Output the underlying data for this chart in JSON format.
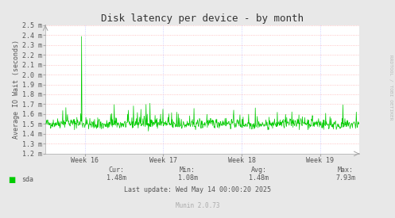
{
  "title": "Disk latency per device - by month",
  "ylabel": "Average IO Wait (seconds)",
  "bg_color": "#e8e8e8",
  "plot_bg_color": "#ffffff",
  "line_color": "#00cc00",
  "grid_color": "#ffaaaa",
  "grid_color_v": "#aaaaff",
  "ylim_min": 0.0012,
  "ylim_max": 0.0025,
  "yticks": [
    0.0012,
    0.0013,
    0.0014,
    0.0015,
    0.0016,
    0.0017,
    0.0018,
    0.0019,
    0.002,
    0.0021,
    0.0022,
    0.0023,
    0.0024,
    0.0025
  ],
  "ytick_labels": [
    "1.2 m",
    "1.3 m",
    "1.4 m",
    "1.5 m",
    "1.6 m",
    "1.7 m",
    "1.8 m",
    "1.9 m",
    "2.0 m",
    "2.1 m",
    "2.2 m",
    "2.3 m",
    "2.4 m",
    "2.5 m"
  ],
  "xtick_labels": [
    "Week 16",
    "Week 17",
    "Week 18",
    "Week 19"
  ],
  "legend_label": "sda",
  "legend_color": "#00cc00",
  "cur_val": "1.48m",
  "min_val": "1.08m",
  "avg_val": "1.48m",
  "max_val": "7.93m",
  "last_update": "Last update: Wed May 14 00:00:20 2025",
  "munin_version": "Munin 2.0.73",
  "rrdtool_label": "RRDTOOL / TOBI OETIKER",
  "title_fontsize": 9,
  "axis_label_fontsize": 6,
  "tick_fontsize": 6,
  "footer_fontsize": 6
}
